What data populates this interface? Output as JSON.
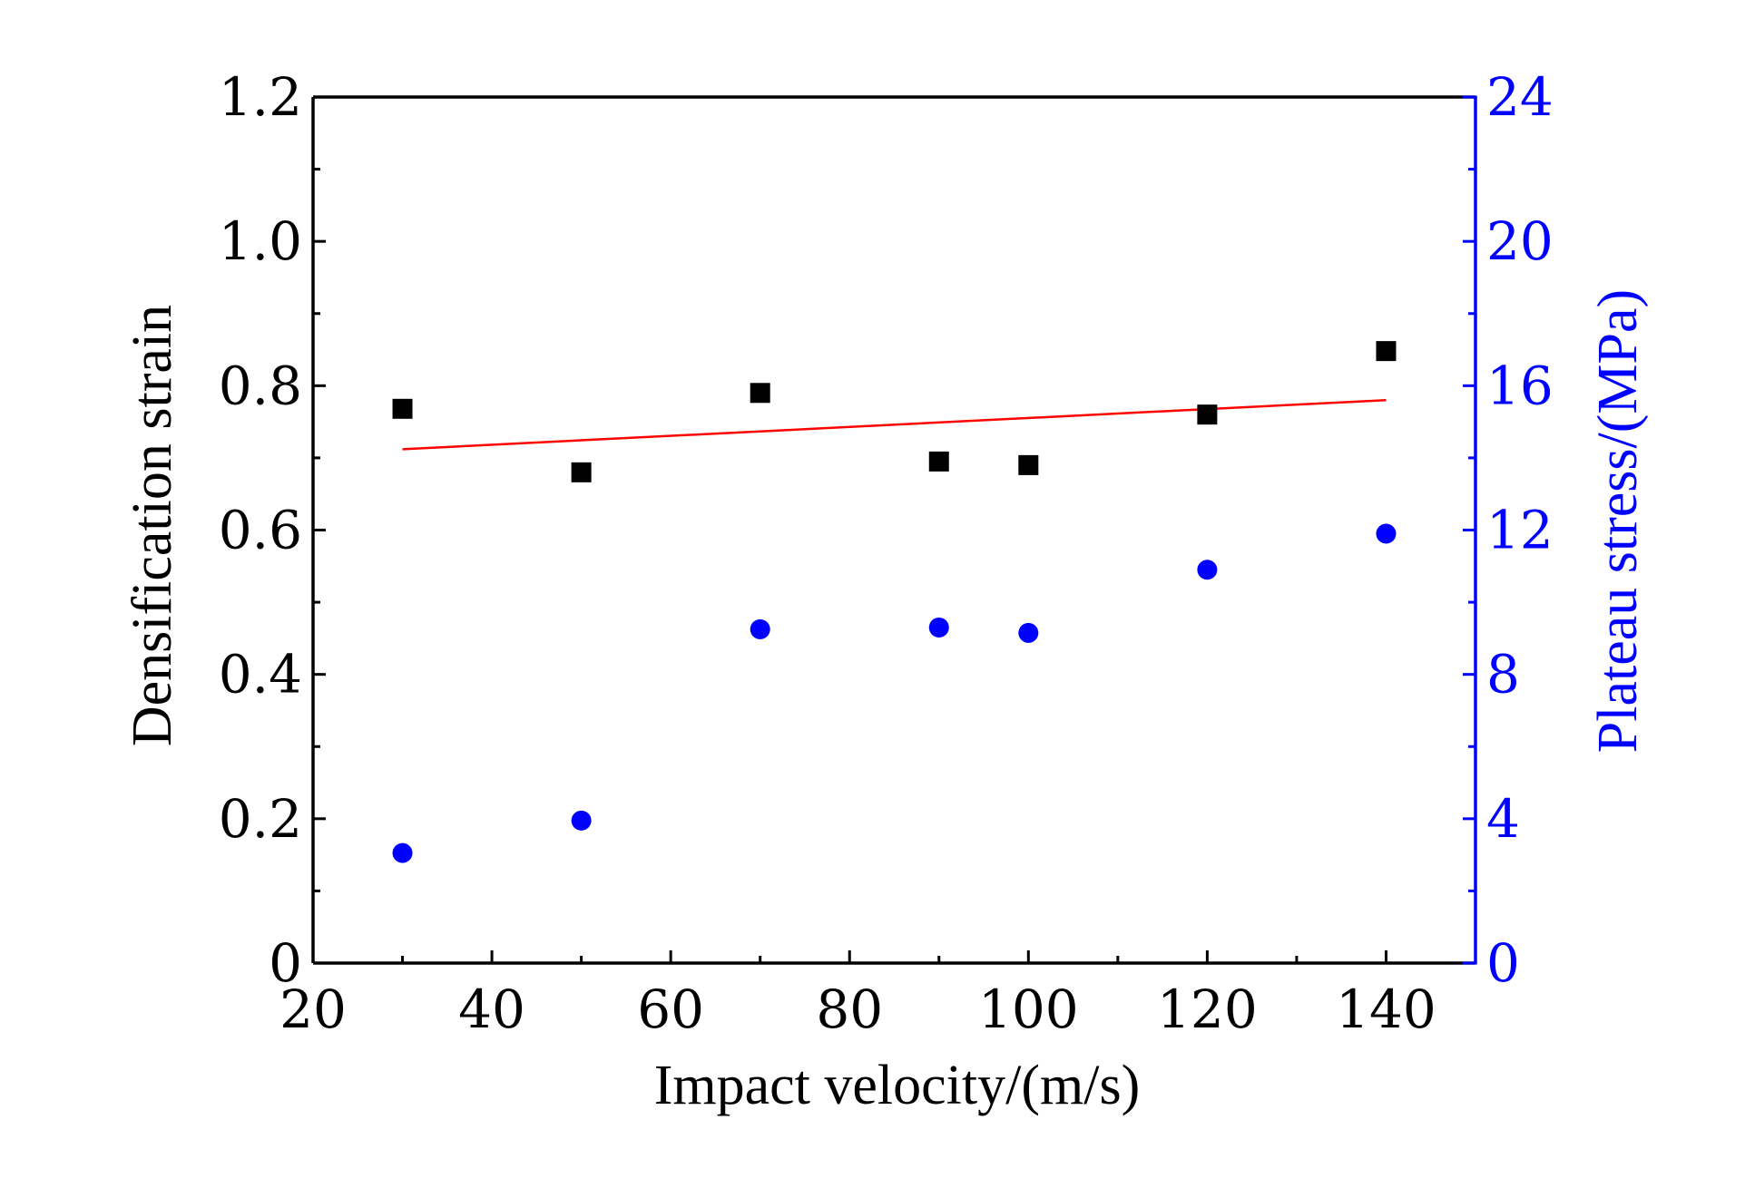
{
  "chart_data": {
    "type": "scatter",
    "xlabel": "Impact velocity/(m/s)",
    "ylabel_left": "Densification strain",
    "ylabel_right": "Plateau stress/(MPa)",
    "xlim": [
      20,
      150
    ],
    "ylim_left": [
      0,
      1.2
    ],
    "ylim_right": [
      0,
      24
    ],
    "x_ticks": [
      20,
      40,
      60,
      80,
      100,
      120,
      140
    ],
    "x_tick_labels": [
      "20",
      "40",
      "60",
      "80",
      "100",
      "120",
      "140"
    ],
    "y_left_ticks": [
      0,
      0.2,
      0.4,
      0.6,
      0.8,
      1.0,
      1.2
    ],
    "y_left_tick_labels": [
      "0",
      "0.2",
      "0.4",
      "0.6",
      "0.8",
      "1.0",
      "1.2"
    ],
    "y_right_ticks": [
      0,
      4,
      8,
      12,
      16,
      20,
      24
    ],
    "y_right_tick_labels": [
      "0",
      "4",
      "8",
      "12",
      "16",
      "20",
      "24"
    ],
    "series": [
      {
        "name": "Densification strain",
        "axis": "left",
        "marker": "square",
        "color": "#000000",
        "x": [
          30,
          50,
          70,
          90,
          100,
          120,
          140
        ],
        "y": [
          0.768,
          0.68,
          0.79,
          0.695,
          0.69,
          0.76,
          0.848
        ]
      },
      {
        "name": "Plateau stress",
        "axis": "right",
        "marker": "circle",
        "color": "#0000ff",
        "x": [
          30,
          50,
          70,
          90,
          100,
          120,
          140
        ],
        "y": [
          3.05,
          3.95,
          9.25,
          9.3,
          9.15,
          10.9,
          11.9
        ]
      }
    ],
    "fit_line": {
      "name": "Linear fit (densification strain)",
      "axis": "left",
      "color": "#ff0000",
      "x": [
        30,
        140
      ],
      "y": [
        0.712,
        0.78
      ]
    },
    "colors": {
      "left_axis": "#000000",
      "right_axis": "#0000ff",
      "frame": "#000000"
    }
  }
}
